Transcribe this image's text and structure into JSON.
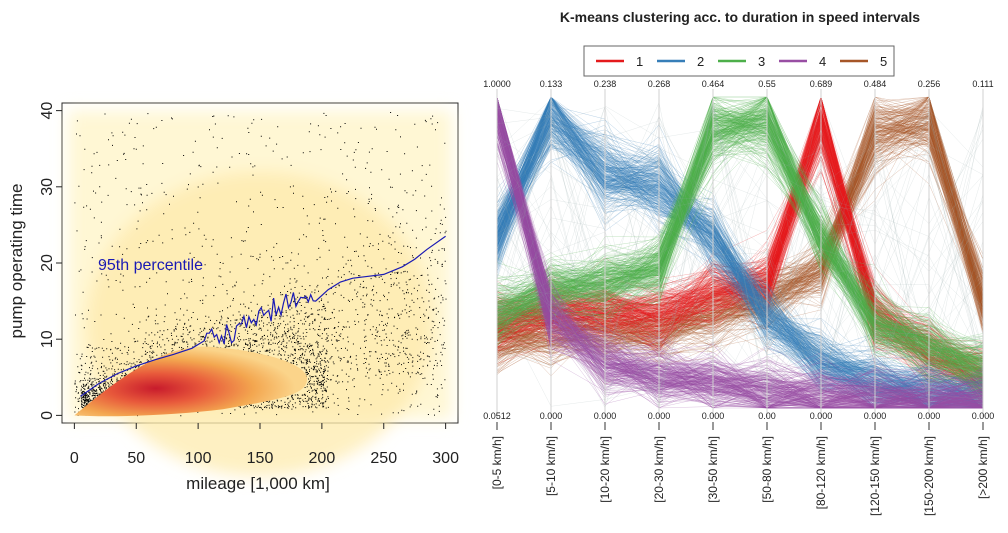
{
  "chart_data": [
    {
      "type": "scatter",
      "title": "",
      "xlabel": "mileage [1,000 km]",
      "ylabel": "pump operating time",
      "xlim": [
        -10,
        310
      ],
      "ylim": [
        -1,
        41
      ],
      "xticks": [
        "0",
        "50",
        "100",
        "150",
        "200",
        "250",
        "300"
      ],
      "yticks": [
        "0",
        "10",
        "20",
        "30",
        "40"
      ],
      "annotation": "95th percentile",
      "colors": {
        "line": "#1a1ab4",
        "points": "#000000",
        "density_low": "#fff6cf",
        "density_mid": "#f3a64f",
        "density_high": "#c81b2c"
      },
      "series": [
        {
          "name": "95th percentile",
          "x": [
            5,
            20,
            35,
            50,
            65,
            80,
            95,
            105,
            115,
            125,
            135,
            145,
            155,
            165,
            175,
            185,
            195,
            205,
            215,
            225,
            235,
            250,
            265,
            275,
            285,
            300
          ],
          "y": [
            2.5,
            4.2,
            5.5,
            6.5,
            7.3,
            8.0,
            8.8,
            9.8,
            10.6,
            10.8,
            12.0,
            12.6,
            13.5,
            14.2,
            14.8,
            15.4,
            15.0,
            16.5,
            17.5,
            18.0,
            18.2,
            18.5,
            19.5,
            20.5,
            21.8,
            23.5
          ]
        }
      ]
    },
    {
      "type": "line",
      "title": "K-means clustering acc. to duration in speed intervals",
      "categories": [
        "[0-5 km/h]",
        "[5-10 km/h]",
        "[10-20 km/h]",
        "[20-30 km/h]",
        "[30-50 km/h]",
        "[50-80 km/h]",
        "[80-120 km/h]",
        "[120-150 km/h]",
        "[150-200 km/h]",
        "[>200 km/h]"
      ],
      "axis_max_labels": [
        "1.0000",
        "0.133",
        "0.238",
        "0.268",
        "0.464",
        "0.55",
        "0.689",
        "0.484",
        "0.256",
        "0.111"
      ],
      "axis_min_labels": [
        "0.0512",
        "0.000",
        "0.000",
        "0.000",
        "0.000",
        "0.00",
        "0.000",
        "0.000",
        "0.000",
        "0.000"
      ],
      "legend_position": "top",
      "series": [
        {
          "name": "1",
          "color": "#e41a1c",
          "values": [
            0.28,
            0.32,
            0.32,
            0.3,
            0.38,
            0.4,
            0.92,
            0.3,
            0.18,
            0.1
          ]
        },
        {
          "name": "2",
          "color": "#377eb8",
          "values": [
            0.55,
            0.95,
            0.75,
            0.72,
            0.55,
            0.3,
            0.15,
            0.08,
            0.05,
            0.03
          ]
        },
        {
          "name": "3",
          "color": "#4daf4a",
          "values": [
            0.3,
            0.38,
            0.4,
            0.45,
            0.9,
            0.92,
            0.55,
            0.28,
            0.2,
            0.12
          ]
        },
        {
          "name": "4",
          "color": "#984ea3",
          "values": [
            0.97,
            0.3,
            0.15,
            0.1,
            0.08,
            0.05,
            0.04,
            0.03,
            0.02,
            0.02
          ]
        },
        {
          "name": "5",
          "color": "#a65628",
          "values": [
            0.22,
            0.25,
            0.25,
            0.25,
            0.3,
            0.35,
            0.45,
            0.88,
            0.93,
            0.35
          ]
        }
      ]
    }
  ]
}
